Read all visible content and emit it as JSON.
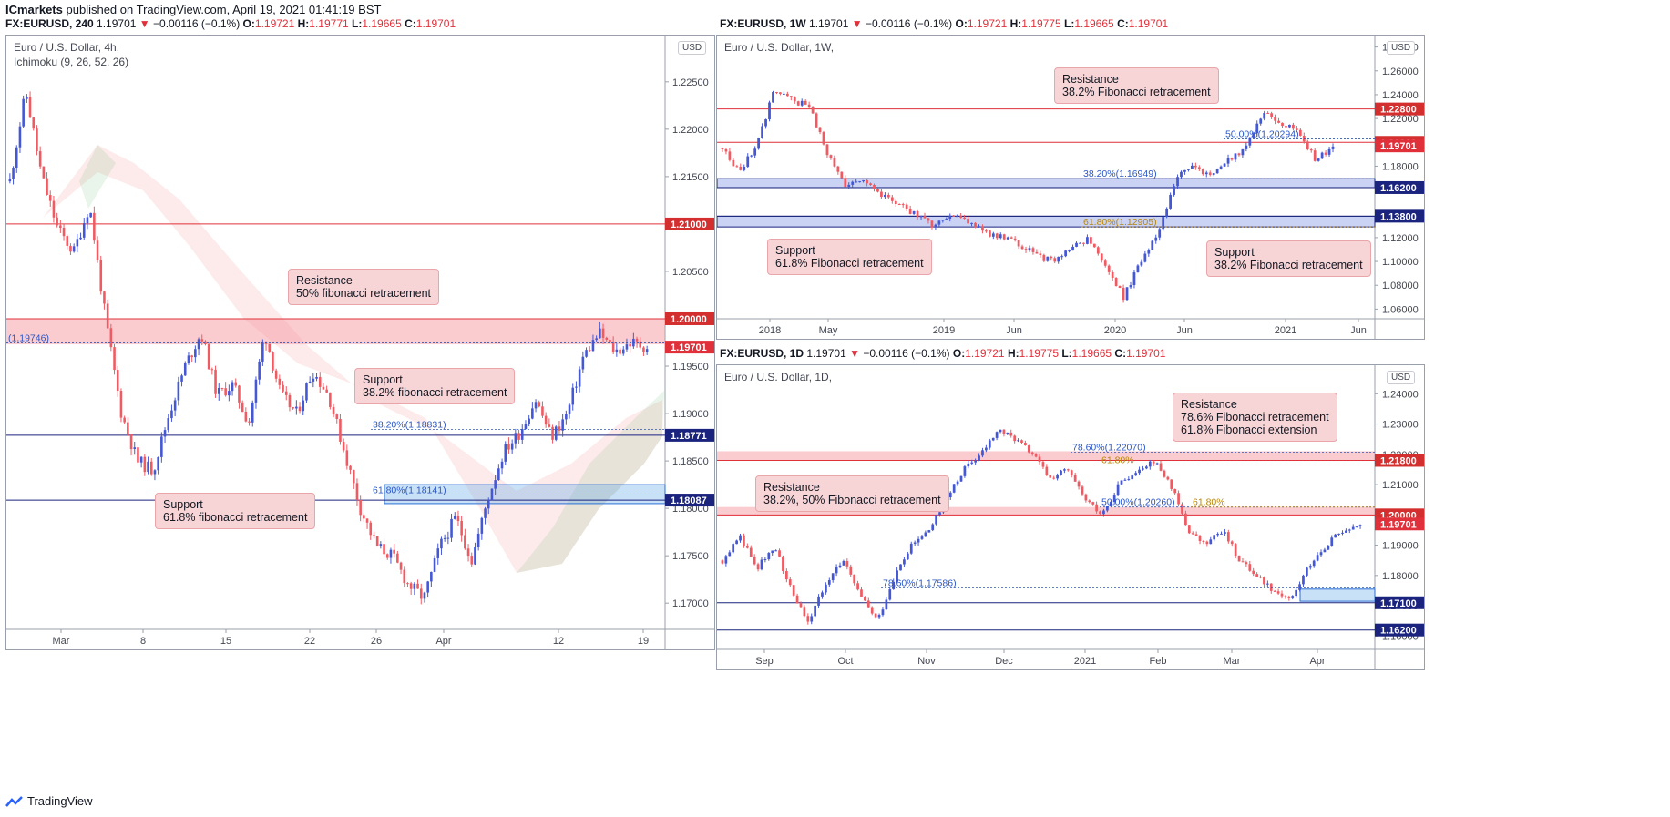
{
  "header": {
    "publisher": "ICmarkets",
    "publish_text": "published on TradingView.com, April 19, 2021 01:41:19 BST"
  },
  "charts": [
    {
      "id": "c4h",
      "symbol_line": {
        "symbol": "FX:EURUSD, 240",
        "price": "1.19701",
        "change": "−0.00116 (−0.1%)",
        "o": "1.19721",
        "h": "1.19771",
        "l": "1.19665",
        "c": "1.19701"
      },
      "title": "Euro / U.S. Dollar, 4h,",
      "indicator": "Ichimoku (9, 26, 52, 26)",
      "currency": "USD",
      "y_ticks": [
        "1.22500",
        "1.22000",
        "1.21500",
        "1.21000",
        "1.20500",
        "1.20000",
        "1.19500",
        "1.19000",
        "1.18500",
        "1.18000",
        "1.17500",
        "1.17000"
      ],
      "x_ticks": [
        "Mar",
        "8",
        "15",
        "22",
        "26",
        "Apr",
        "12",
        "19"
      ],
      "price_tags": [
        {
          "label": "1.21000",
          "color": "#d32f2f"
        },
        {
          "label": "1.20000",
          "color": "#d32f2f"
        },
        {
          "label": "1.19701",
          "color": "#e0303a"
        },
        {
          "label": "1.18771",
          "color": "#1a237e"
        },
        {
          "label": "1.18087",
          "color": "#1a237e"
        }
      ],
      "fib_labels": [
        "(1.19746)",
        "38.20%(1.18831)",
        "61.80%(1.18141)"
      ],
      "callouts": [
        {
          "line1": "Resistance",
          "line2": "50% fibonacci retracement"
        },
        {
          "line1": "Support",
          "line2": "38.2% fibonacci retracement"
        },
        {
          "line1": "Support",
          "line2": "61.8% fibonacci retracement"
        }
      ]
    },
    {
      "id": "c1w",
      "symbol_line": {
        "symbol": "FX:EURUSD, 1W",
        "price": "1.19701",
        "change": "−0.00116 (−0.1%)",
        "o": "1.19721",
        "h": "1.19775",
        "l": "1.19665",
        "c": "1.19701"
      },
      "title": "Euro / U.S. Dollar, 1W,",
      "currency": "USD",
      "y_ticks": [
        "1.28000",
        "1.26000",
        "1.24000",
        "1.22000",
        "1.20000",
        "1.18000",
        "1.16000",
        "1.14000",
        "1.12000",
        "1.10000",
        "1.08000",
        "1.06000"
      ],
      "x_ticks": [
        "2018",
        "May",
        "2019",
        "Jun",
        "2020",
        "Jun",
        "2021",
        "Jun"
      ],
      "price_tags": [
        {
          "label": "1.22800",
          "color": "#d32f2f"
        },
        {
          "label": "1.20000",
          "color": "#d32f2f"
        },
        {
          "label": "1.19701",
          "color": "#e0303a"
        },
        {
          "label": "1.16200",
          "color": "#1a237e"
        },
        {
          "label": "1.13800",
          "color": "#1a237e"
        }
      ],
      "fib_labels": [
        "50.00%(1.20294)",
        "38.20%(1.16949)",
        "61.80%(1.12905)"
      ],
      "callouts": [
        {
          "line1": "Resistance",
          "line2": "38.2% Fibonacci retracement"
        },
        {
          "line1": "Support",
          "line2": "61.8% Fibonacci retracement"
        },
        {
          "line1": "Support",
          "line2": "38.2% Fibonacci retracement"
        }
      ]
    },
    {
      "id": "c1d",
      "symbol_line": {
        "symbol": "FX:EURUSD, 1D",
        "price": "1.19701",
        "change": "−0.00116 (−0.1%)",
        "o": "1.19721",
        "h": "1.19775",
        "l": "1.19665",
        "c": "1.19701"
      },
      "title": "Euro / U.S. Dollar, 1D,",
      "currency": "USD",
      "y_ticks": [
        "1.24000",
        "1.23000",
        "1.22000",
        "1.21000",
        "1.20000",
        "1.19000",
        "1.18000",
        "1.17000",
        "1.16000"
      ],
      "x_ticks": [
        "Sep",
        "Oct",
        "Nov",
        "Dec",
        "2021",
        "Feb",
        "Mar",
        "Apr"
      ],
      "price_tags": [
        {
          "label": "1.21800",
          "color": "#d32f2f"
        },
        {
          "label": "1.20000",
          "color": "#d32f2f"
        },
        {
          "label": "1.19701",
          "color": "#e0303a"
        },
        {
          "label": "1.17100",
          "color": "#1a237e"
        },
        {
          "label": "1.16200",
          "color": "#1a237e"
        }
      ],
      "fib_labels": [
        "78.60%(1.22070)",
        "61.80%",
        "50.00%(1.20260)",
        "61.80%",
        "78.60%(1.17586)"
      ],
      "callouts": [
        {
          "line1": "Resistance",
          "line2": "78.6% Fibonacci retracement",
          "line3": "61.8% Fibonacci extension"
        },
        {
          "line1": "Resistance",
          "line2": "38.2%, 50% Fibonacci retracement"
        }
      ]
    }
  ],
  "footer": {
    "brand": "TradingView"
  },
  "chart_data": [
    {
      "type": "candlestick",
      "title": "Euro / U.S. Dollar, 4h,",
      "ylim": [
        1.168,
        1.227
      ],
      "x_ticks": [
        "Mar",
        "8",
        "15",
        "22",
        "26",
        "Apr",
        "12",
        "19"
      ],
      "close_path": [
        1.2145,
        1.224,
        1.215,
        1.2095,
        1.207,
        1.212,
        1.2,
        1.19,
        1.185,
        1.184,
        1.19,
        1.195,
        1.1985,
        1.192,
        1.193,
        1.189,
        1.1985,
        1.192,
        1.19,
        1.1945,
        1.192,
        1.186,
        1.18,
        1.176,
        1.175,
        1.172,
        1.1705,
        1.176,
        1.179,
        1.1745,
        1.181,
        1.186,
        1.188,
        1.1915,
        1.1875,
        1.19,
        1.196,
        1.1985,
        1.1965,
        1.1975,
        1.197
      ],
      "levels": [
        {
          "value": 1.21,
          "kind": "resistance"
        },
        {
          "value": 1.2,
          "kind": "resistance"
        },
        {
          "value": 1.18771,
          "kind": "support"
        },
        {
          "value": 1.18087,
          "kind": "support"
        }
      ],
      "fib": [
        {
          "label": "38.20%",
          "value": 1.18831
        },
        {
          "label": "61.80%",
          "value": 1.18141
        }
      ]
    },
    {
      "type": "candlestick",
      "title": "Euro / U.S. Dollar, 1W,",
      "ylim": [
        1.058,
        1.282
      ],
      "x_ticks": [
        "2018",
        "May",
        "2019",
        "Jun",
        "2020",
        "Jun",
        "2021",
        "Jun"
      ],
      "close_path": [
        1.195,
        1.175,
        1.2,
        1.245,
        1.235,
        1.23,
        1.19,
        1.165,
        1.17,
        1.155,
        1.15,
        1.14,
        1.13,
        1.14,
        1.135,
        1.125,
        1.12,
        1.115,
        1.105,
        1.1,
        1.11,
        1.12,
        1.095,
        1.07,
        1.1,
        1.125,
        1.17,
        1.18,
        1.17,
        1.185,
        1.195,
        1.225,
        1.215,
        1.21,
        1.185,
        1.195
      ],
      "levels": [
        {
          "value": 1.228,
          "kind": "resistance"
        },
        {
          "value": 1.2,
          "kind": "resistance"
        },
        {
          "value": 1.162,
          "kind": "support"
        },
        {
          "value": 1.138,
          "kind": "support"
        }
      ],
      "fib": [
        {
          "label": "50.00%",
          "value": 1.20294
        },
        {
          "label": "38.20%",
          "value": 1.16949
        },
        {
          "label": "61.80%",
          "value": 1.12905
        }
      ]
    },
    {
      "type": "candlestick",
      "title": "Euro / U.S. Dollar, 1D,",
      "ylim": [
        1.158,
        1.244
      ],
      "x_ticks": [
        "Sep",
        "Oct",
        "Nov",
        "Dec",
        "2021",
        "Feb",
        "Mar",
        "Apr"
      ],
      "close_path": [
        1.185,
        1.193,
        1.182,
        1.19,
        1.175,
        1.165,
        1.178,
        1.185,
        1.173,
        1.165,
        1.18,
        1.19,
        1.195,
        1.205,
        1.215,
        1.22,
        1.228,
        1.225,
        1.22,
        1.212,
        1.215,
        1.205,
        1.2,
        1.21,
        1.215,
        1.218,
        1.21,
        1.195,
        1.19,
        1.195,
        1.185,
        1.18,
        1.175,
        1.172,
        1.183,
        1.19,
        1.195,
        1.197
      ],
      "levels": [
        {
          "value": 1.218,
          "kind": "resistance"
        },
        {
          "value": 1.2,
          "kind": "resistance"
        },
        {
          "value": 1.171,
          "kind": "support"
        },
        {
          "value": 1.162,
          "kind": "support"
        }
      ],
      "fib": [
        {
          "label": "78.60%",
          "value": 1.2207
        },
        {
          "label": "50.00%",
          "value": 1.2026
        },
        {
          "label": "78.60%",
          "value": 1.17586
        }
      ]
    }
  ]
}
